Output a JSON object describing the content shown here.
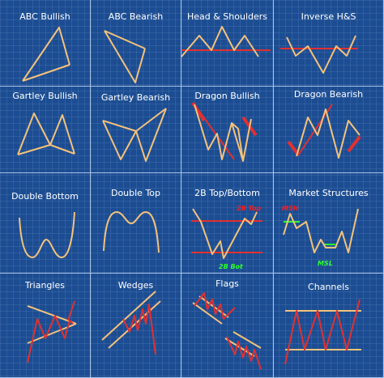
{
  "patterns": [
    {
      "label": "ABC Bullish"
    },
    {
      "label": "ABC Bearish"
    },
    {
      "label": "Head & Shoulders"
    },
    {
      "label": "Inverse H&S"
    },
    {
      "label": "Gartley Bullish"
    },
    {
      "label": "Gartley Bearish"
    },
    {
      "label": "Dragon Bullish"
    },
    {
      "label": "Dragon Bearish"
    },
    {
      "label": "Double Bottom"
    },
    {
      "label": "Double Top"
    },
    {
      "label": "2B Top/Bottom",
      "annotations": [
        "2B Top",
        "2B Bot"
      ]
    },
    {
      "label": "Market Structures",
      "annotations": [
        "MSH",
        "MSL"
      ]
    },
    {
      "label": "Triangles"
    },
    {
      "label": "Wedges"
    },
    {
      "label": "Flags"
    },
    {
      "label": "Channels"
    }
  ],
  "colors": {
    "background": "#1c4d92",
    "grid_line": "#a9c2e6",
    "price_line": "#f5c27a",
    "support_line": "#e23030",
    "annotation_red": "#ff1a1a",
    "annotation_green": "#2bff2b"
  }
}
